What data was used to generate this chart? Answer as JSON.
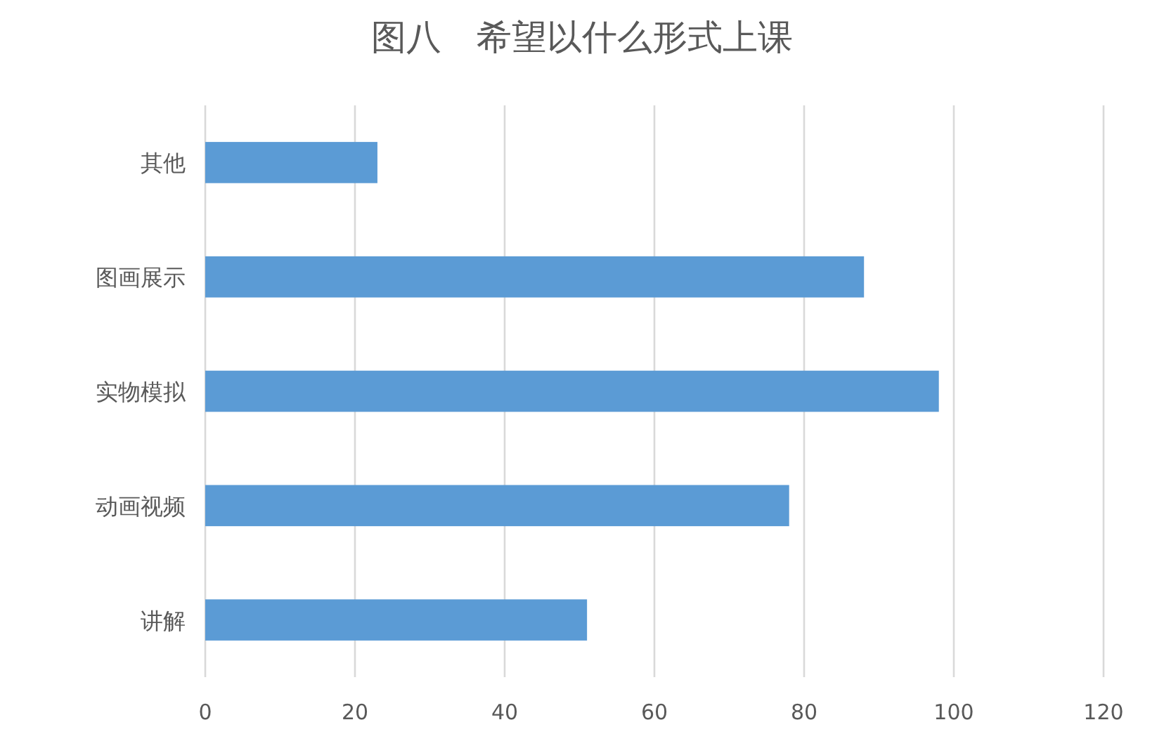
{
  "chart_data": {
    "type": "bar",
    "orientation": "horizontal",
    "title": "图八　希望以什么形式上课",
    "categories": [
      "其他",
      "图画展示",
      "实物模拟",
      "动画视频",
      "讲解"
    ],
    "values": [
      23,
      88,
      98,
      78,
      51
    ],
    "color": "#5b9bd5",
    "xlim": [
      0,
      120
    ],
    "xticks": [
      0,
      20,
      40,
      60,
      80,
      100,
      120
    ],
    "grid": "x"
  }
}
